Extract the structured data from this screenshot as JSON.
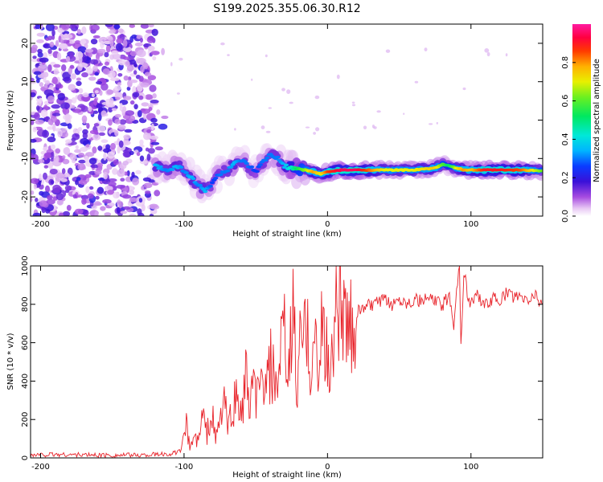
{
  "title": "S199.2025.355.06.30.R12",
  "chart_data": [
    {
      "type": "heatmap",
      "xlabel": "Height of straight line (km)",
      "ylabel": "Frequency (Hz)",
      "xlim": [
        -207,
        150
      ],
      "ylim": [
        -25,
        25
      ],
      "xticks": [
        -200,
        -100,
        0,
        100
      ],
      "yticks": [
        20,
        10,
        0,
        -10,
        -20
      ],
      "colorbar": {
        "label": "Normalized spectral amplitude",
        "ticks": [
          0.0,
          0.2,
          0.4,
          0.6,
          0.8
        ],
        "range": [
          0,
          1
        ]
      },
      "trace": {
        "x": [
          -120,
          -112,
          -105,
          -100,
          -95,
          -90,
          -85,
          -80,
          -75,
          -70,
          -65,
          -60,
          -55,
          -50,
          -45,
          -40,
          -35,
          -30,
          -25,
          -20,
          -15,
          -10,
          -5,
          0,
          10,
          20,
          40,
          60,
          75,
          80,
          85,
          90,
          95,
          100,
          110,
          120,
          135,
          150
        ],
        "freq": [
          -12,
          -13,
          -12,
          -13,
          -15,
          -17,
          -18.5,
          -16,
          -14,
          -13,
          -11.5,
          -10.5,
          -12,
          -13.5,
          -11,
          -9,
          -10,
          -12,
          -12.5,
          -13,
          -13,
          -13.5,
          -14,
          -13.5,
          -13,
          -13,
          -13,
          -13,
          -12.5,
          -11.5,
          -12,
          -12.5,
          -13,
          -13,
          -13,
          -13,
          -13,
          -13.2
        ],
        "amplitude": [
          0.35,
          0.3,
          0.35,
          0.3,
          0.35,
          0.3,
          0.35,
          0.25,
          0.3,
          0.3,
          0.35,
          0.3,
          0.3,
          0.25,
          0.3,
          0.3,
          0.3,
          0.35,
          0.45,
          0.55,
          0.65,
          0.8,
          0.7,
          0.85,
          0.95,
          0.95,
          0.7,
          0.7,
          0.75,
          0.6,
          0.5,
          0.7,
          0.8,
          0.75,
          0.9,
          0.9,
          0.85,
          0.6
        ]
      },
      "noise_region_x": [
        -207,
        -120
      ]
    },
    {
      "type": "line",
      "xlabel": "Height of straight line (km)",
      "ylabel": "SNR (10 * v/v)",
      "xlim": [
        -207,
        150
      ],
      "ylim": [
        0,
        1000
      ],
      "xticks": [
        -200,
        -100,
        0,
        100
      ],
      "yticks": [
        0,
        200,
        400,
        600,
        800,
        1000
      ],
      "series": [
        {
          "name": "SNR",
          "color": "#e8232a",
          "x": [
            -207,
            -190,
            -170,
            -150,
            -130,
            -110,
            -102,
            -99,
            -96,
            -93,
            -90,
            -87,
            -84,
            -81,
            -78,
            -75,
            -72,
            -69,
            -66,
            -63,
            -60,
            -57,
            -54,
            -51,
            -48,
            -45,
            -42,
            -39,
            -36,
            -33,
            -30,
            -27,
            -24,
            -21,
            -18,
            -15,
            -12,
            -9,
            -6,
            -3,
            0,
            3,
            6,
            9,
            12,
            15,
            18,
            21,
            24,
            27,
            30,
            35,
            40,
            45,
            50,
            55,
            60,
            65,
            70,
            75,
            80,
            85,
            88,
            90,
            92,
            93,
            95,
            98,
            100,
            105,
            110,
            115,
            120,
            125,
            130,
            135,
            140,
            145,
            150
          ],
          "values": [
            15,
            18,
            16,
            14,
            15,
            20,
            35,
            190,
            60,
            110,
            80,
            230,
            120,
            260,
            90,
            200,
            300,
            150,
            290,
            310,
            220,
            420,
            250,
            380,
            300,
            420,
            360,
            500,
            320,
            520,
            600,
            420,
            780,
            350,
            700,
            600,
            550,
            630,
            400,
            760,
            500,
            480,
            940,
            850,
            680,
            620,
            720,
            760,
            770,
            800,
            790,
            810,
            820,
            800,
            830,
            810,
            825,
            815,
            830,
            820,
            790,
            850,
            700,
            880,
            1000,
            570,
            980,
            830,
            810,
            850,
            790,
            830,
            820,
            860,
            840,
            830,
            820,
            850,
            800
          ]
        }
      ]
    }
  ]
}
